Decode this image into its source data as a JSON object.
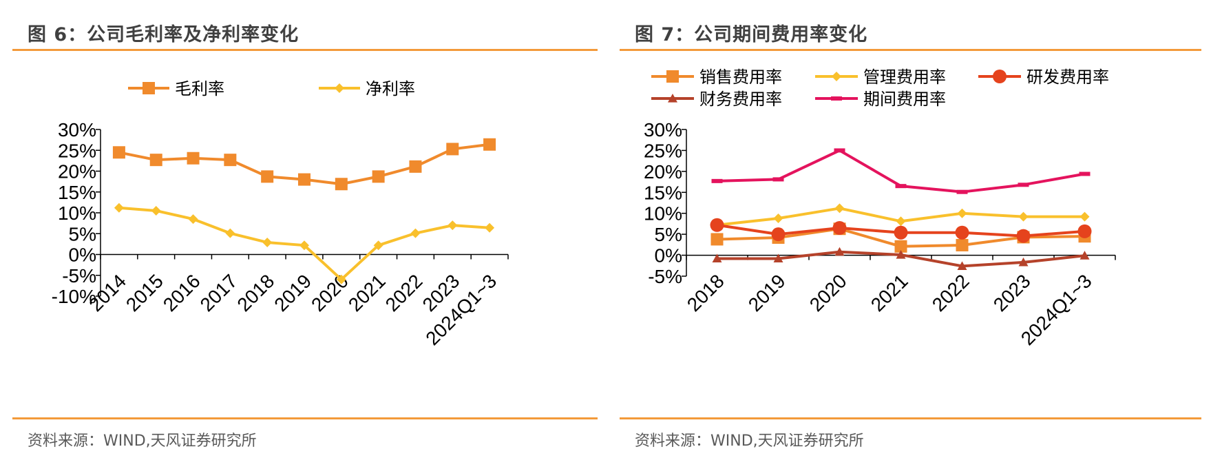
{
  "left": {
    "title": "图 6：公司毛利率及净利率变化",
    "source": "资料来源：WIND,天风证券研究所"
  },
  "right": {
    "title": "图 7：公司期间费用率变化",
    "source": "资料来源：WIND,天风证券研究所"
  },
  "chart_data": [
    {
      "type": "line",
      "title": "图 6：公司毛利率及净利率变化",
      "categories": [
        "2014",
        "2015",
        "2016",
        "2017",
        "2018",
        "2019",
        "2020",
        "2021",
        "2022",
        "2023",
        "2024Q1~3"
      ],
      "ylim": [
        -10,
        30
      ],
      "yticks": [
        "-10%",
        "-5%",
        "0%",
        "5%",
        "10%",
        "15%",
        "20%",
        "25%",
        "30%"
      ],
      "legend_position": "top",
      "series": [
        {
          "name": "毛利率",
          "color": "#f08a2c",
          "marker": "square",
          "values": [
            24.5,
            22.7,
            23.1,
            22.7,
            18.7,
            18.0,
            16.9,
            18.7,
            21.1,
            25.3,
            26.4
          ]
        },
        {
          "name": "净利率",
          "color": "#f9c02c",
          "marker": "diamond",
          "values": [
            11.2,
            10.5,
            8.5,
            5.1,
            2.9,
            2.2,
            -6.0,
            2.2,
            5.1,
            7.0,
            6.4
          ]
        }
      ]
    },
    {
      "type": "line",
      "title": "图 7：公司期间费用率变化",
      "categories": [
        "2018",
        "2019",
        "2020",
        "2021",
        "2022",
        "2023",
        "2024Q1~3"
      ],
      "ylim": [
        -5,
        30
      ],
      "yticks": [
        "-5%",
        "0%",
        "5%",
        "10%",
        "15%",
        "20%",
        "25%",
        "30%"
      ],
      "legend_position": "top",
      "series": [
        {
          "name": "销售费用率",
          "color": "#f08a2c",
          "marker": "square",
          "values": [
            3.8,
            4.2,
            6.3,
            2.1,
            2.4,
            4.3,
            4.5
          ]
        },
        {
          "name": "管理费用率",
          "color": "#f9c02c",
          "marker": "diamond",
          "values": [
            7.2,
            8.8,
            11.2,
            8.1,
            10.0,
            9.2,
            9.2
          ]
        },
        {
          "name": "研发费用率",
          "color": "#e5431d",
          "marker": "circle",
          "values": [
            7.2,
            5.0,
            6.5,
            5.4,
            5.4,
            4.6,
            5.7
          ]
        },
        {
          "name": "财务费用率",
          "color": "#b5422a",
          "marker": "triangle",
          "values": [
            -0.8,
            -0.8,
            0.8,
            0.1,
            -2.6,
            -1.7,
            -0.1
          ]
        },
        {
          "name": "期间费用率",
          "color": "#e4135d",
          "marker": "dash",
          "values": [
            17.7,
            18.1,
            25.0,
            16.5,
            15.1,
            16.8,
            19.4
          ]
        }
      ]
    }
  ]
}
